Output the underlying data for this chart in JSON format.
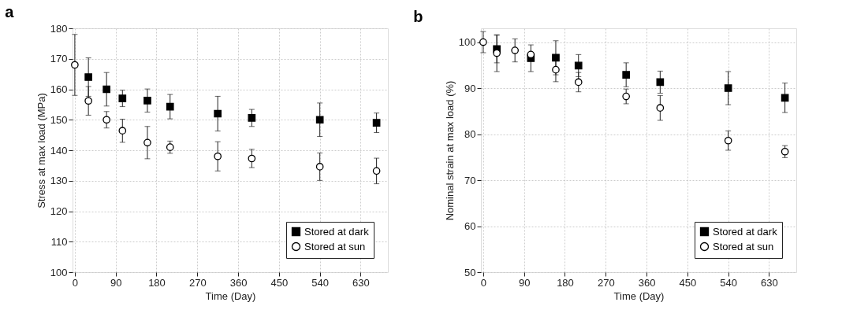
{
  "chart_data": [
    {
      "type": "scatter",
      "title": "a",
      "xlabel": "Time (Day)",
      "ylabel": "Stress at max load (MPa)",
      "xlim": [
        -5,
        690
      ],
      "xticks": [
        0,
        90,
        180,
        270,
        360,
        450,
        540,
        630
      ],
      "ylim": [
        100,
        180
      ],
      "yticks": [
        100,
        110,
        120,
        130,
        140,
        150,
        160,
        170,
        180
      ],
      "grid": true,
      "legend": "bottom right",
      "x": [
        0,
        30,
        70,
        105,
        160,
        210,
        315,
        390,
        540,
        665
      ],
      "series": [
        {
          "name": "Stored at dark",
          "color": "#000000",
          "marker": "square",
          "values": [
            null,
            164,
            160,
            157,
            156.3,
            154.3,
            152,
            150.6,
            150,
            149
          ],
          "errors": [
            null,
            6.3,
            5.5,
            2.7,
            3.8,
            4,
            5.7,
            2.8,
            5.5,
            3.2
          ]
        },
        {
          "name": "Stored at sun",
          "color": "#000000",
          "marker": "circle",
          "values": [
            168,
            156.2,
            150,
            146.4,
            142.5,
            141,
            138,
            137.3,
            134.6,
            133.2
          ],
          "errors": [
            10,
            4.7,
            2.7,
            3.8,
            5.3,
            2,
            4.8,
            3,
            4.5,
            4.2
          ]
        }
      ]
    },
    {
      "type": "scatter",
      "title": "b",
      "xlabel": "Time (Day)",
      "ylabel": "Nominal strain at max load (%)",
      "xlim": [
        -5,
        690
      ],
      "xticks": [
        0,
        90,
        180,
        270,
        360,
        450,
        540,
        630
      ],
      "ylim": [
        50,
        103
      ],
      "yticks": [
        50,
        60,
        70,
        80,
        90,
        100
      ],
      "grid": true,
      "legend": "bottom right",
      "x": [
        0,
        30,
        70,
        105,
        160,
        210,
        315,
        390,
        540,
        665
      ],
      "series": [
        {
          "name": "Stored at dark",
          "color": "#000000",
          "marker": "square",
          "values": [
            null,
            98.5,
            null,
            96.5,
            96.6,
            94.9,
            92.9,
            91.3,
            90,
            87.9
          ],
          "errors": [
            null,
            3,
            null,
            2.9,
            3.7,
            2.4,
            2.6,
            2.4,
            3.6,
            3.2
          ]
        },
        {
          "name": "Stored at sun",
          "color": "#000000",
          "marker": "circle",
          "values": [
            100,
            97.6,
            98.2,
            97.3,
            94,
            91.3,
            88.2,
            85.7,
            78.6,
            76.2
          ],
          "errors": [
            2.3,
            4,
            2.5,
            null,
            2.6,
            2.1,
            1.6,
            2.7,
            2.1,
            1.3
          ]
        }
      ]
    }
  ]
}
